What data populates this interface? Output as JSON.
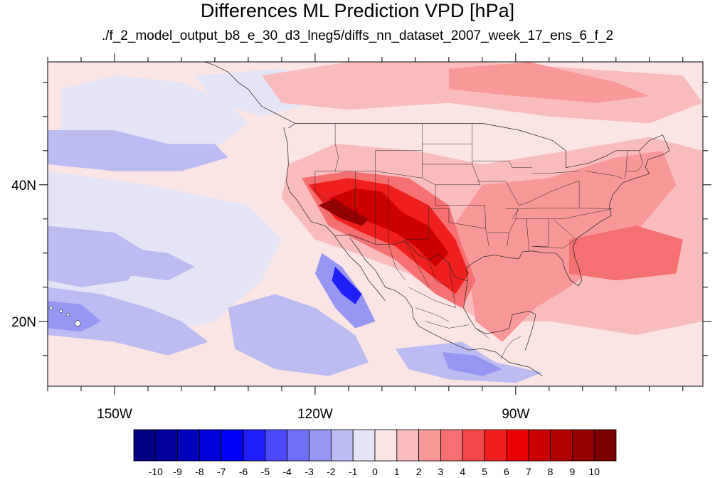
{
  "title": "Differences ML Prediction VPD [hPa]",
  "subtitle": "./f_2_model_output_b8_e_30_d3_lneg5/diffs_nn_dataset_2007_week_17_ens_6_f_2",
  "map": {
    "projection": "cylindrical-equidistant",
    "lon_range": [
      -160,
      -62
    ],
    "lat_range": [
      10.5,
      58
    ],
    "x_ticks": [
      {
        "lon": -150,
        "label": "150W"
      },
      {
        "lon": -120,
        "label": "120W"
      },
      {
        "lon": -90,
        "label": "90W"
      }
    ],
    "y_ticks": [
      {
        "lat": 40,
        "label": "40N"
      },
      {
        "lat": 20,
        "label": "20N"
      }
    ],
    "minor_x_ticks": [
      -160,
      -155,
      -145,
      -140,
      -135,
      -130,
      -125,
      -115,
      -110,
      -105,
      -100,
      -95,
      -85,
      -80,
      -75,
      -70,
      -65
    ],
    "minor_y_ticks": [
      15,
      25,
      30,
      35,
      45,
      50,
      55
    ],
    "features": [
      "coastlines",
      "US state boundaries",
      "Mexico state boundaries"
    ]
  },
  "colorbar": {
    "labels": [
      "-10",
      "-9",
      "-8",
      "-7",
      "-6",
      "-5",
      "-4",
      "-3",
      "-2",
      "-1",
      "0",
      "1",
      "2",
      "3",
      "4",
      "5",
      "6",
      "7",
      "8",
      "9",
      "10"
    ],
    "colors": [
      "#000080",
      "#00009e",
      "#0000bc",
      "#0000d9",
      "#0000f6",
      "#1f1ff8",
      "#4a4af8",
      "#7070f6",
      "#9797f3",
      "#bcbcf2",
      "#e4e4f6",
      "#fbe4e4",
      "#f9bcbc",
      "#f89898",
      "#f57070",
      "#f34848",
      "#f01f1f",
      "#e80000",
      "#cc0000",
      "#b00000",
      "#950000",
      "#7a0000"
    ]
  },
  "chart_data": {
    "type": "heatmap",
    "variable": "VPD difference",
    "units": "hPa",
    "levels": [
      -10,
      -9,
      -8,
      -7,
      -6,
      -5,
      -4,
      -3,
      -2,
      -1,
      0,
      1,
      2,
      3,
      4,
      5,
      6,
      7,
      8,
      9,
      10
    ],
    "background_level_bin": "0 to 1",
    "regions": [
      {
        "level_bin": "-1 to 0",
        "polygon": [
          [
            -158,
            54
          ],
          [
            -150,
            56
          ],
          [
            -140,
            55
          ],
          [
            -133,
            52
          ],
          [
            -130,
            49
          ],
          [
            -134,
            46
          ],
          [
            -140,
            44
          ],
          [
            -150,
            43
          ],
          [
            -158,
            45
          ]
        ]
      },
      {
        "level_bin": "-2 to -1",
        "polygon": [
          [
            -160,
            48
          ],
          [
            -150,
            48
          ],
          [
            -142,
            46
          ],
          [
            -135,
            46
          ],
          [
            -133,
            44
          ],
          [
            -140,
            42
          ],
          [
            -150,
            42
          ],
          [
            -160,
            43
          ]
        ]
      },
      {
        "level_bin": "-1 to 0",
        "polygon": [
          [
            -160,
            42
          ],
          [
            -145,
            40
          ],
          [
            -130,
            37
          ],
          [
            -125,
            32
          ],
          [
            -128,
            26
          ],
          [
            -135,
            20
          ],
          [
            -145,
            18
          ],
          [
            -155,
            18
          ],
          [
            -160,
            20
          ]
        ]
      },
      {
        "level_bin": "-2 to -1",
        "polygon": [
          [
            -160,
            34
          ],
          [
            -150,
            33
          ],
          [
            -145,
            30
          ],
          [
            -148,
            26
          ],
          [
            -155,
            25
          ],
          [
            -160,
            26
          ]
        ]
      },
      {
        "level_bin": "-2 to -1",
        "polygon": [
          [
            -150,
            31
          ],
          [
            -142,
            30
          ],
          [
            -138,
            28
          ],
          [
            -142,
            26
          ],
          [
            -150,
            27
          ]
        ]
      },
      {
        "level_bin": "-2 to -1",
        "polygon": [
          [
            -160,
            25
          ],
          [
            -152,
            24
          ],
          [
            -145,
            22
          ],
          [
            -140,
            20
          ],
          [
            -136,
            17
          ],
          [
            -142,
            15
          ],
          [
            -150,
            17
          ],
          [
            -160,
            18
          ]
        ]
      },
      {
        "level_bin": "-3 to -2",
        "polygon": [
          [
            -160,
            23
          ],
          [
            -155,
            22.5
          ],
          [
            -152,
            20
          ],
          [
            -155,
            18.5
          ],
          [
            -160,
            19
          ]
        ]
      },
      {
        "level_bin": "-2 to -1",
        "polygon": [
          [
            -133,
            22
          ],
          [
            -126,
            24
          ],
          [
            -120,
            22
          ],
          [
            -114,
            18
          ],
          [
            -112,
            14
          ],
          [
            -118,
            12
          ],
          [
            -126,
            13
          ],
          [
            -132,
            16
          ]
        ]
      },
      {
        "level_bin": "-3 to -2",
        "polygon": [
          [
            -119,
            30
          ],
          [
            -116,
            28
          ],
          [
            -113,
            24
          ],
          [
            -111,
            20
          ],
          [
            -114,
            19
          ],
          [
            -117,
            22
          ],
          [
            -120,
            27
          ]
        ]
      },
      {
        "level_bin": "-6 to -5",
        "polygon": [
          [
            -117,
            28
          ],
          [
            -115,
            26
          ],
          [
            -113,
            24
          ],
          [
            -114,
            22.5
          ],
          [
            -116,
            24
          ],
          [
            -117.5,
            26
          ]
        ]
      },
      {
        "level_bin": "-2 to -1",
        "polygon": [
          [
            -108,
            16
          ],
          [
            -98,
            17
          ],
          [
            -93,
            14
          ],
          [
            -86,
            12.5
          ],
          [
            -90,
            11
          ],
          [
            -100,
            11.5
          ],
          [
            -106,
            13
          ]
        ]
      },
      {
        "level_bin": "-3 to -2",
        "polygon": [
          [
            -101,
            15.5
          ],
          [
            -96,
            15
          ],
          [
            -92,
            13
          ],
          [
            -95,
            12
          ],
          [
            -100,
            13
          ]
        ]
      },
      {
        "level_bin": "-1 to 0",
        "polygon": [
          [
            -138,
            56
          ],
          [
            -125,
            57
          ],
          [
            -118,
            55
          ],
          [
            -120,
            52
          ],
          [
            -128,
            50
          ],
          [
            -135,
            52
          ]
        ]
      },
      {
        "level_bin": "1 to 2",
        "polygon": [
          [
            -128,
            56
          ],
          [
            -115,
            58
          ],
          [
            -95,
            58
          ],
          [
            -80,
            57
          ],
          [
            -65,
            56
          ],
          [
            -62,
            52
          ],
          [
            -70,
            49
          ],
          [
            -85,
            50
          ],
          [
            -100,
            52
          ],
          [
            -115,
            51
          ],
          [
            -125,
            52
          ]
        ]
      },
      {
        "level_bin": "2 to 3",
        "polygon": [
          [
            -100,
            57
          ],
          [
            -88,
            58
          ],
          [
            -75,
            55
          ],
          [
            -70,
            53
          ],
          [
            -78,
            52
          ],
          [
            -90,
            53
          ],
          [
            -100,
            54
          ]
        ]
      },
      {
        "level_bin": "1 to 2",
        "polygon": [
          [
            -124,
            43
          ],
          [
            -117,
            46
          ],
          [
            -105,
            45
          ],
          [
            -95,
            43
          ],
          [
            -82,
            45
          ],
          [
            -70,
            47
          ],
          [
            -62,
            45
          ],
          [
            -62,
            20
          ],
          [
            -72,
            18
          ],
          [
            -85,
            20
          ],
          [
            -95,
            20
          ],
          [
            -100,
            23
          ],
          [
            -106,
            27
          ],
          [
            -114,
            30
          ],
          [
            -120,
            32
          ],
          [
            -125,
            38
          ]
        ]
      },
      {
        "level_bin": "2 to 3",
        "polygon": [
          [
            -95,
            40
          ],
          [
            -85,
            41
          ],
          [
            -75,
            44
          ],
          [
            -68,
            45
          ],
          [
            -66,
            40
          ],
          [
            -72,
            33
          ],
          [
            -78,
            28
          ],
          [
            -82,
            25
          ],
          [
            -87,
            22
          ],
          [
            -92,
            17
          ],
          [
            -96,
            20
          ],
          [
            -97,
            27
          ],
          [
            -100,
            33
          ]
        ]
      },
      {
        "level_bin": "3 to 4",
        "polygon": [
          [
            -82,
            32
          ],
          [
            -72,
            34
          ],
          [
            -65,
            32
          ],
          [
            -66,
            27
          ],
          [
            -75,
            26
          ],
          [
            -82,
            27
          ]
        ]
      },
      {
        "level_bin": "3 to 4",
        "polygon": [
          [
            -122,
            41
          ],
          [
            -115,
            42
          ],
          [
            -106,
            41
          ],
          [
            -100,
            37
          ],
          [
            -98,
            31
          ],
          [
            -96,
            26
          ],
          [
            -98,
            22
          ],
          [
            -102,
            24
          ],
          [
            -108,
            29
          ],
          [
            -114,
            32
          ],
          [
            -118,
            34
          ]
        ]
      },
      {
        "level_bin": "5 to 6",
        "polygon": [
          [
            -121,
            40
          ],
          [
            -115,
            41
          ],
          [
            -109,
            40
          ],
          [
            -103,
            37
          ],
          [
            -99,
            32
          ],
          [
            -97,
            27
          ],
          [
            -99,
            24
          ],
          [
            -103,
            27
          ],
          [
            -108,
            31
          ],
          [
            -113,
            33
          ],
          [
            -117,
            35
          ]
        ]
      },
      {
        "level_bin": "7 to 8",
        "polygon": [
          [
            -118,
            38
          ],
          [
            -114,
            39.5
          ],
          [
            -110,
            39
          ],
          [
            -107,
            36
          ],
          [
            -103,
            34
          ],
          [
            -100,
            30
          ],
          [
            -102,
            28
          ],
          [
            -105,
            31
          ],
          [
            -108,
            33
          ],
          [
            -113,
            35
          ]
        ]
      },
      {
        "level_bin": "9 to 10",
        "polygon": [
          [
            -119.5,
            37
          ],
          [
            -117,
            38
          ],
          [
            -114,
            36
          ],
          [
            -112,
            35
          ],
          [
            -113,
            34
          ],
          [
            -116,
            35
          ]
        ]
      }
    ]
  }
}
